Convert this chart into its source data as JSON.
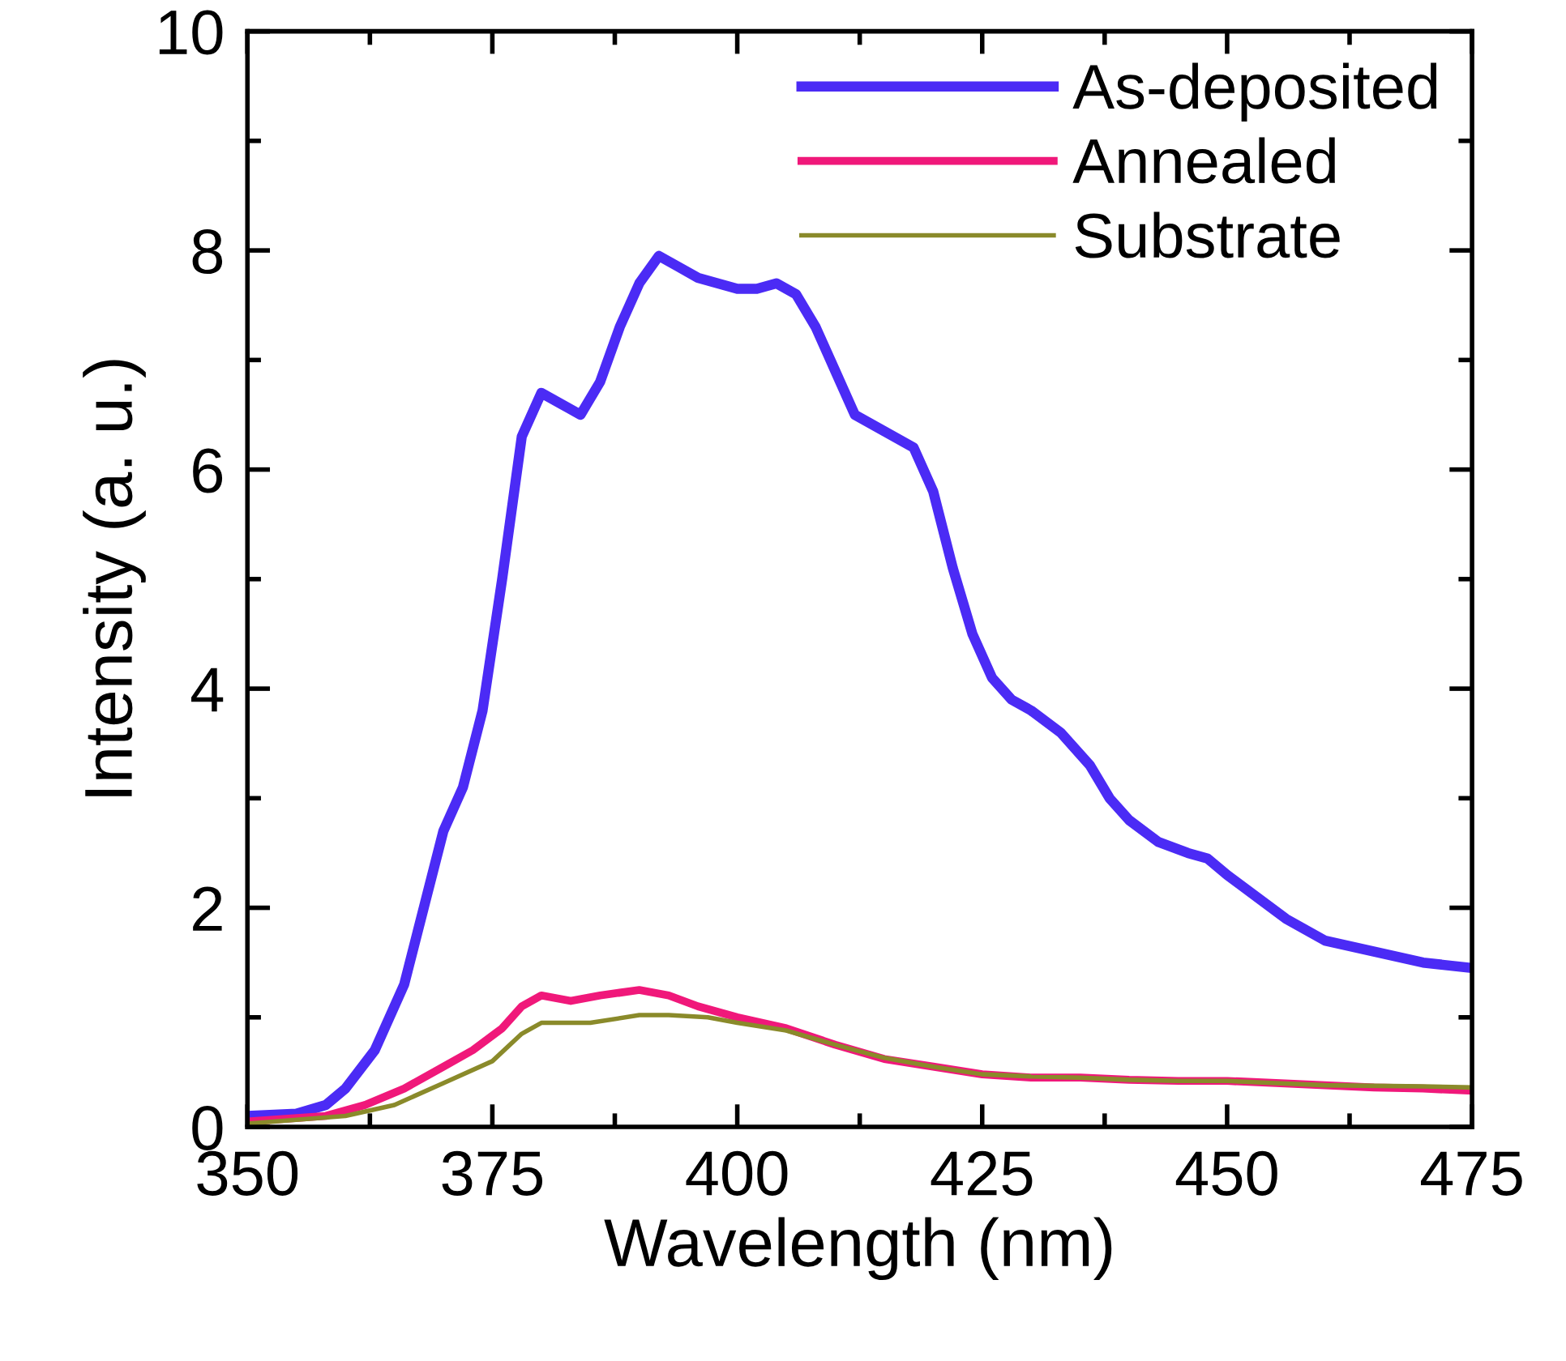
{
  "chart_data": {
    "type": "line",
    "xlabel": "Wavelength (nm)",
    "ylabel": "Intensity (a. u.)",
    "xlim": [
      350,
      475
    ],
    "xticks": [
      350,
      375,
      400,
      425,
      450,
      475
    ],
    "ylim": [
      0,
      10
    ],
    "yticks": [
      0,
      2,
      4,
      6,
      8,
      10
    ],
    "grid": false,
    "legend": "top right",
    "marker": "none",
    "line_style": "solid",
    "series": [
      {
        "name": "As-deposited",
        "color": "#4b2bf5",
        "x": [
          350,
          355,
          358,
          360,
          363,
          366,
          368,
          370,
          372,
          374,
          376,
          378,
          380,
          382,
          384,
          386,
          388,
          390,
          392,
          394,
          396,
          398,
          400,
          402,
          404,
          406,
          408,
          410,
          412,
          415,
          418,
          420,
          422,
          424,
          426,
          428,
          430,
          433,
          436,
          438,
          440,
          443,
          446,
          448,
          450,
          453,
          456,
          460,
          465,
          470,
          475
        ],
        "values": [
          0.1,
          0.12,
          0.2,
          0.35,
          0.7,
          1.3,
          2.0,
          2.7,
          3.1,
          3.8,
          5.0,
          6.3,
          6.7,
          6.6,
          6.5,
          6.8,
          7.3,
          7.7,
          7.95,
          7.85,
          7.75,
          7.7,
          7.65,
          7.65,
          7.7,
          7.6,
          7.3,
          6.9,
          6.5,
          6.35,
          6.2,
          5.8,
          5.1,
          4.5,
          4.1,
          3.9,
          3.8,
          3.6,
          3.3,
          3.0,
          2.8,
          2.6,
          2.5,
          2.45,
          2.3,
          2.1,
          1.9,
          1.7,
          1.6,
          1.5,
          1.45
        ]
      },
      {
        "name": "Annealed",
        "color": "#f0187a",
        "x": [
          350,
          358,
          362,
          366,
          370,
          373,
          376,
          378,
          380,
          383,
          386,
          390,
          393,
          396,
          400,
          405,
          410,
          415,
          420,
          425,
          430,
          435,
          440,
          445,
          450,
          455,
          460,
          465,
          470,
          475
        ],
        "values": [
          0.05,
          0.1,
          0.2,
          0.35,
          0.55,
          0.7,
          0.9,
          1.1,
          1.2,
          1.15,
          1.2,
          1.25,
          1.2,
          1.1,
          1.0,
          0.9,
          0.75,
          0.62,
          0.55,
          0.48,
          0.45,
          0.45,
          0.43,
          0.42,
          0.42,
          0.4,
          0.38,
          0.36,
          0.35,
          0.33
        ]
      },
      {
        "name": "Substrate",
        "color": "#8a8a2a",
        "x": [
          350,
          360,
          365,
          370,
          375,
          378,
          380,
          385,
          390,
          393,
          397,
          400,
          405,
          410,
          415,
          420,
          425,
          430,
          435,
          440,
          445,
          450,
          455,
          460,
          470,
          475
        ],
        "values": [
          0.03,
          0.1,
          0.2,
          0.4,
          0.6,
          0.85,
          0.95,
          0.95,
          1.02,
          1.02,
          1.0,
          0.95,
          0.88,
          0.75,
          0.63,
          0.55,
          0.48,
          0.46,
          0.45,
          0.43,
          0.42,
          0.42,
          0.4,
          0.38,
          0.37,
          0.36
        ]
      }
    ]
  }
}
